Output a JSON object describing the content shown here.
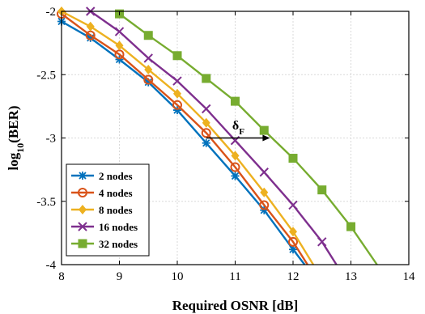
{
  "chart_data": {
    "type": "line",
    "xlabel": "Required OSNR [dB]",
    "ylabel": {
      "main": "log",
      "sub": "10",
      "rest": "(BER)"
    },
    "xlim": [
      8,
      14
    ],
    "ylim": [
      -4,
      -2
    ],
    "xticks": [
      8,
      9,
      10,
      11,
      12,
      13,
      14
    ],
    "yticks": [
      -2,
      -2.5,
      -3,
      -3.5,
      -4
    ],
    "xtick_labels": [
      "8",
      "9",
      "10",
      "11",
      "12",
      "13",
      "14"
    ],
    "ytick_labels": [
      "-2",
      "-2.5",
      "-3",
      "-3.5",
      "-4"
    ],
    "grid": true,
    "legend_position": "bottom-left",
    "annotation": {
      "symbol": "δ",
      "sub": "F",
      "from": [
        10.5,
        -3.0
      ],
      "to": [
        11.6,
        -3.0
      ],
      "label_at": [
        10.95,
        -2.9
      ]
    },
    "series": [
      {
        "name": "2 nodes",
        "color": "#0072BD",
        "marker": "star",
        "x": [
          8.0,
          8.5,
          9.0,
          9.5,
          10.0,
          10.5,
          11.0,
          11.5,
          12.0,
          12.2
        ],
        "y": [
          -2.08,
          -2.21,
          -2.38,
          -2.56,
          -2.78,
          -3.04,
          -3.3,
          -3.57,
          -3.88,
          -4.0
        ]
      },
      {
        "name": "4 nodes",
        "color": "#D95319",
        "marker": "circle",
        "x": [
          8.0,
          8.5,
          9.0,
          9.5,
          10.0,
          10.5,
          11.0,
          11.5,
          12.0,
          12.25
        ],
        "y": [
          -2.02,
          -2.19,
          -2.34,
          -2.54,
          -2.74,
          -2.96,
          -3.23,
          -3.53,
          -3.82,
          -4.0
        ]
      },
      {
        "name": "8 nodes",
        "color": "#EDB120",
        "marker": "diamond",
        "x": [
          8.0,
          8.5,
          9.0,
          9.5,
          10.0,
          10.5,
          11.0,
          11.5,
          12.0,
          12.35
        ],
        "y": [
          -2.0,
          -2.12,
          -2.27,
          -2.46,
          -2.65,
          -2.88,
          -3.14,
          -3.43,
          -3.74,
          -4.0
        ]
      },
      {
        "name": "16 nodes",
        "color": "#7E2F8E",
        "marker": "x",
        "x": [
          8.5,
          9.0,
          9.5,
          10.0,
          10.5,
          11.0,
          11.5,
          12.0,
          12.5,
          12.75
        ],
        "y": [
          -2.0,
          -2.16,
          -2.37,
          -2.55,
          -2.77,
          -3.02,
          -3.27,
          -3.53,
          -3.82,
          -4.0
        ]
      },
      {
        "name": "32 nodes",
        "color": "#77AC30",
        "marker": "square",
        "x": [
          9.0,
          9.5,
          10.0,
          10.5,
          11.0,
          11.5,
          12.0,
          12.5,
          13.0,
          13.45
        ],
        "y": [
          -2.02,
          -2.19,
          -2.35,
          -2.53,
          -2.71,
          -2.94,
          -3.16,
          -3.41,
          -3.7,
          -4.0
        ]
      }
    ]
  }
}
